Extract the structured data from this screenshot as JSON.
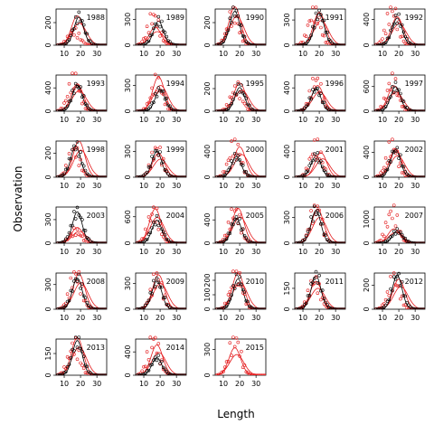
{
  "chart_data": {
    "type": "scatter",
    "xlabel": "Length",
    "ylabel": "Observation",
    "xlim": [
      5,
      36
    ],
    "xticks": [
      10,
      20,
      30
    ],
    "series_styles": [
      {
        "color": "#d62728",
        "marker": "open-circle",
        "line": true
      },
      {
        "color": "#000000",
        "marker": "open-circle",
        "line": true
      }
    ],
    "panels": [
      {
        "year": "1988",
        "yticks": [
          0,
          200
        ],
        "ylim": [
          0,
          320
        ],
        "red_peak": [
          16,
          120
        ],
        "black_peak": [
          19,
          250
        ],
        "red_line_peak": [
          18,
          260
        ]
      },
      {
        "year": "1989",
        "yticks": [
          0,
          300
        ],
        "ylim": [
          0,
          420
        ],
        "red_peak": [
          16,
          330
        ],
        "black_peak": [
          19,
          280
        ],
        "red_line_peak": [
          17,
          210
        ]
      },
      {
        "year": "1990",
        "yticks": [
          0,
          200
        ],
        "ylim": [
          0,
          320
        ],
        "red_peak": [
          16,
          270
        ],
        "black_peak": [
          17,
          300
        ],
        "red_line_peak": [
          17,
          340
        ]
      },
      {
        "year": "1991",
        "yticks": [
          0,
          300
        ],
        "ylim": [
          0,
          430
        ],
        "red_peak": [
          17,
          420
        ],
        "black_peak": [
          20,
          380
        ],
        "red_line_peak": [
          20,
          390
        ]
      },
      {
        "year": "1992",
        "yticks": [
          0,
          400
        ],
        "ylim": [
          0,
          560
        ],
        "red_peak": [
          16,
          540
        ],
        "black_peak": [
          19,
          420
        ],
        "red_line_peak": [
          19,
          440
        ]
      },
      {
        "year": "1993",
        "yticks": [
          0,
          400
        ],
        "ylim": [
          0,
          620
        ],
        "red_peak": [
          16,
          560
        ],
        "black_peak": [
          18,
          440
        ],
        "red_line_peak": [
          18,
          470
        ]
      },
      {
        "year": "1994",
        "yticks": [
          0,
          300
        ],
        "ylim": [
          0,
          420
        ],
        "red_peak": [
          18,
          330
        ],
        "black_peak": [
          20,
          250
        ],
        "red_line_peak": [
          19,
          400
        ]
      },
      {
        "year": "1995",
        "yticks": [
          0,
          200
        ],
        "ylim": [
          0,
          320
        ],
        "red_peak": [
          18,
          200
        ],
        "black_peak": [
          20,
          210
        ],
        "red_line_peak": [
          20,
          250
        ]
      },
      {
        "year": "1996",
        "yticks": [
          0,
          400
        ],
        "ylim": [
          0,
          620
        ],
        "red_peak": [
          18,
          520
        ],
        "black_peak": [
          18,
          380
        ],
        "red_line_peak": [
          19,
          440
        ]
      },
      {
        "year": "1997",
        "yticks": [
          0,
          600
        ],
        "ylim": [
          0,
          880
        ],
        "red_peak": [
          16,
          720
        ],
        "black_peak": [
          18,
          600
        ],
        "red_line_peak": [
          17,
          620
        ]
      },
      {
        "year": "1998",
        "yticks": [
          0,
          200
        ],
        "ylim": [
          0,
          300
        ],
        "red_peak": [
          16,
          220
        ],
        "black_peak": [
          17,
          260
        ],
        "red_line_peak": [
          19,
          300
        ]
      },
      {
        "year": "1999",
        "yticks": [
          0,
          300
        ],
        "ylim": [
          0,
          420
        ],
        "red_peak": [
          18,
          320
        ],
        "black_peak": [
          18,
          300
        ],
        "red_line_peak": [
          19,
          280
        ]
      },
      {
        "year": "2000",
        "yticks": [
          0,
          400
        ],
        "ylim": [
          0,
          560
        ],
        "red_peak": [
          17,
          520
        ],
        "black_peak": [
          18,
          320
        ],
        "red_line_peak": [
          20,
          470
        ]
      },
      {
        "year": "2001",
        "yticks": [
          0,
          400
        ],
        "ylim": [
          0,
          560
        ],
        "red_peak": [
          18,
          480
        ],
        "black_peak": [
          18,
          330
        ],
        "red_line_peak": [
          21,
          380
        ]
      },
      {
        "year": "2002",
        "yticks": [
          0,
          400
        ],
        "ylim": [
          0,
          580
        ],
        "red_peak": [
          16,
          500
        ],
        "black_peak": [
          18,
          440
        ],
        "red_line_peak": [
          18,
          460
        ]
      },
      {
        "year": "2003",
        "yticks": [
          0,
          300
        ],
        "ylim": [
          0,
          460
        ],
        "red_peak": [
          17,
          150
        ],
        "black_peak": [
          18,
          400
        ],
        "red_line_peak": [
          18,
          200
        ]
      },
      {
        "year": "2004",
        "yticks": [
          0,
          600
        ],
        "ylim": [
          0,
          820
        ],
        "red_peak": [
          16,
          700
        ],
        "black_peak": [
          18,
          520
        ],
        "red_line_peak": [
          17,
          780
        ]
      },
      {
        "year": "2005",
        "yticks": [
          0,
          400
        ],
        "ylim": [
          0,
          620
        ],
        "red_peak": [
          17,
          540
        ],
        "black_peak": [
          18,
          420
        ],
        "red_line_peak": [
          19,
          600
        ]
      },
      {
        "year": "2006",
        "yticks": [
          0,
          300
        ],
        "ylim": [
          0,
          420
        ],
        "red_peak": [
          18,
          420
        ],
        "black_peak": [
          18,
          380
        ],
        "red_line_peak": [
          19,
          400
        ]
      },
      {
        "year": "2007",
        "yticks": [
          0,
          1000
        ],
        "ylim": [
          0,
          1500
        ],
        "red_peak": [
          16,
          1300
        ],
        "black_peak": [
          19,
          500
        ],
        "red_line_peak": [
          17,
          600
        ]
      },
      {
        "year": "2008",
        "yticks": [
          0,
          300
        ],
        "ylim": [
          0,
          440
        ],
        "red_peak": [
          17,
          420
        ],
        "black_peak": [
          18,
          380
        ],
        "red_line_peak": [
          19,
          430
        ]
      },
      {
        "year": "2009",
        "yticks": [
          0,
          300
        ],
        "ylim": [
          0,
          420
        ],
        "red_peak": [
          18,
          360
        ],
        "black_peak": [
          18,
          330
        ],
        "red_line_peak": [
          19,
          400
        ]
      },
      {
        "year": "2010",
        "yticks": [
          0,
          100,
          200
        ],
        "ylim": [
          0,
          250
        ],
        "red_peak": [
          18,
          250
        ],
        "black_peak": [
          19,
          210
        ],
        "red_line_peak": [
          19,
          250
        ]
      },
      {
        "year": "2011",
        "yticks": [
          0,
          150
        ],
        "ylim": [
          0,
          260
        ],
        "red_peak": [
          17,
          200
        ],
        "black_peak": [
          18,
          240
        ],
        "red_line_peak": [
          18,
          200
        ]
      },
      {
        "year": "2012",
        "yticks": [
          0,
          200
        ],
        "ylim": [
          0,
          300
        ],
        "red_peak": [
          17,
          240
        ],
        "black_peak": [
          19,
          280
        ],
        "red_line_peak": [
          20,
          250
        ]
      },
      {
        "year": "2013",
        "yticks": [
          0,
          150
        ],
        "ylim": [
          0,
          250
        ],
        "red_peak": [
          16,
          200
        ],
        "black_peak": [
          18,
          240
        ],
        "red_line_peak": [
          18,
          260
        ]
      },
      {
        "year": "2014",
        "yticks": [
          0,
          400
        ],
        "ylim": [
          0,
          620
        ],
        "red_peak": [
          16,
          600
        ],
        "black_peak": [
          18,
          300
        ],
        "red_line_peak": [
          18,
          520
        ]
      },
      {
        "year": "2015",
        "yticks": [
          0,
          300
        ],
        "ylim": [
          0,
          420
        ],
        "red_peak": [
          17,
          420
        ],
        "black_peak": null,
        "red_line_peak": [
          17,
          320
        ]
      }
    ]
  }
}
